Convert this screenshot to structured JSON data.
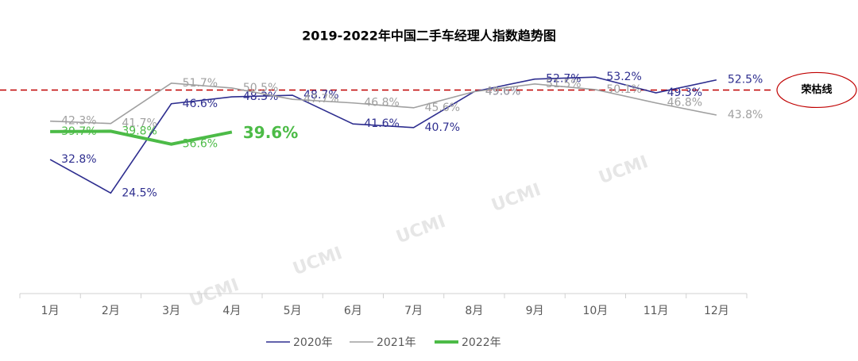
{
  "chart_data": {
    "type": "line",
    "title": "2019-2022年中国二手车经理人指数趋势图",
    "categories": [
      "1月",
      "2月",
      "3月",
      "4月",
      "5月",
      "6月",
      "7月",
      "8月",
      "9月",
      "10月",
      "11月",
      "12月"
    ],
    "series": [
      {
        "name": "2020年",
        "color": "#2e2e8f",
        "values": [
          32.8,
          24.5,
          46.6,
          48.3,
          48.7,
          41.6,
          40.7,
          49.6,
          52.7,
          53.2,
          49.3,
          52.5
        ],
        "value_labels": [
          "32.8%",
          "24.5%",
          "46.6%",
          "48.3%",
          "48.7%",
          "41.6%",
          "40.7%",
          "49.6%",
          "52.7%",
          "53.2%",
          "49.3%",
          "52.5%"
        ]
      },
      {
        "name": "2021年",
        "color": "#a0a0a0",
        "values": [
          42.3,
          41.7,
          51.7,
          50.5,
          47.7,
          46.8,
          45.6,
          49.6,
          51.5,
          50.1,
          46.8,
          43.8
        ],
        "value_labels": [
          "42.3%",
          "41.7%",
          "51.7%",
          "50.5%",
          "47.7%",
          "46.8%",
          "45.6%",
          "49.6%",
          "51.5%",
          "50.1%",
          "46.8%",
          "43.8%"
        ]
      },
      {
        "name": "2022年",
        "color": "#4cbb47",
        "values": [
          39.7,
          39.8,
          36.6,
          39.6,
          null,
          null,
          null,
          null,
          null,
          null,
          null,
          null
        ],
        "value_labels": [
          "39.7%",
          "39.8%",
          "36.6%",
          "39.6%",
          null,
          null,
          null,
          null,
          null,
          null,
          null,
          null
        ]
      }
    ],
    "ylim": [
      0,
      55
    ],
    "reference_line": {
      "value": 50,
      "label": "荣枯线",
      "color": "#c00000"
    },
    "watermark": "UCMI"
  }
}
